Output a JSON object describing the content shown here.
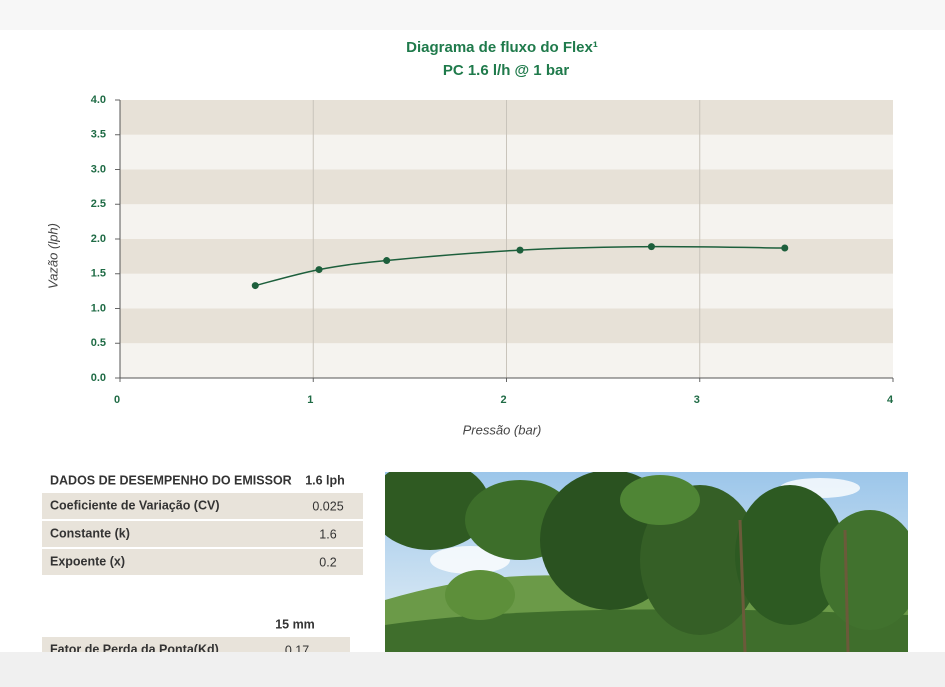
{
  "chart_data": {
    "type": "line",
    "title": "Diagrama de fluxo do Flex¹",
    "subtitle": "PC 1.6 l/h @ 1 bar",
    "x_label": "Pressão (bar)",
    "y_label": "Vazão (lph)",
    "x": [
      0.7,
      1.03,
      1.38,
      2.07,
      2.75,
      3.44
    ],
    "series": [
      {
        "name": "Flex",
        "color": "#1d5f3c",
        "values": [
          1.33,
          1.56,
          1.69,
          1.84,
          1.89,
          1.87
        ]
      }
    ],
    "xlim": [
      0,
      4
    ],
    "xticks": [
      0,
      1,
      2,
      3,
      4
    ],
    "ylim": [
      0,
      4
    ],
    "yticks": [
      {
        "value": 0,
        "label": "0.0"
      },
      0.5,
      {
        "value": 1,
        "label": "1.0"
      },
      1.5,
      {
        "value": 2,
        "label": "2.0"
      },
      2.5,
      {
        "value": 3,
        "label": "3.0"
      },
      3.5,
      {
        "value": 4,
        "label": "4.0"
      }
    ],
    "band_colors": [
      "#f5f3ef",
      "#e7e1d7"
    ]
  },
  "performance_table": {
    "header": [
      "DADOS DE DESEMPENHO DO EMISSOR",
      "1.6 lph"
    ],
    "rows": [
      [
        "Coeficiente de Variação (CV)",
        "0.025"
      ],
      [
        "Constante (k)",
        "1.6"
      ],
      [
        "Expoente (x)",
        "0.2"
      ]
    ]
  },
  "loss_table": {
    "header": [
      "15 mm"
    ],
    "rows": [
      [
        "Fator de Perda da Ponta(Kd)",
        "0.17"
      ]
    ]
  }
}
